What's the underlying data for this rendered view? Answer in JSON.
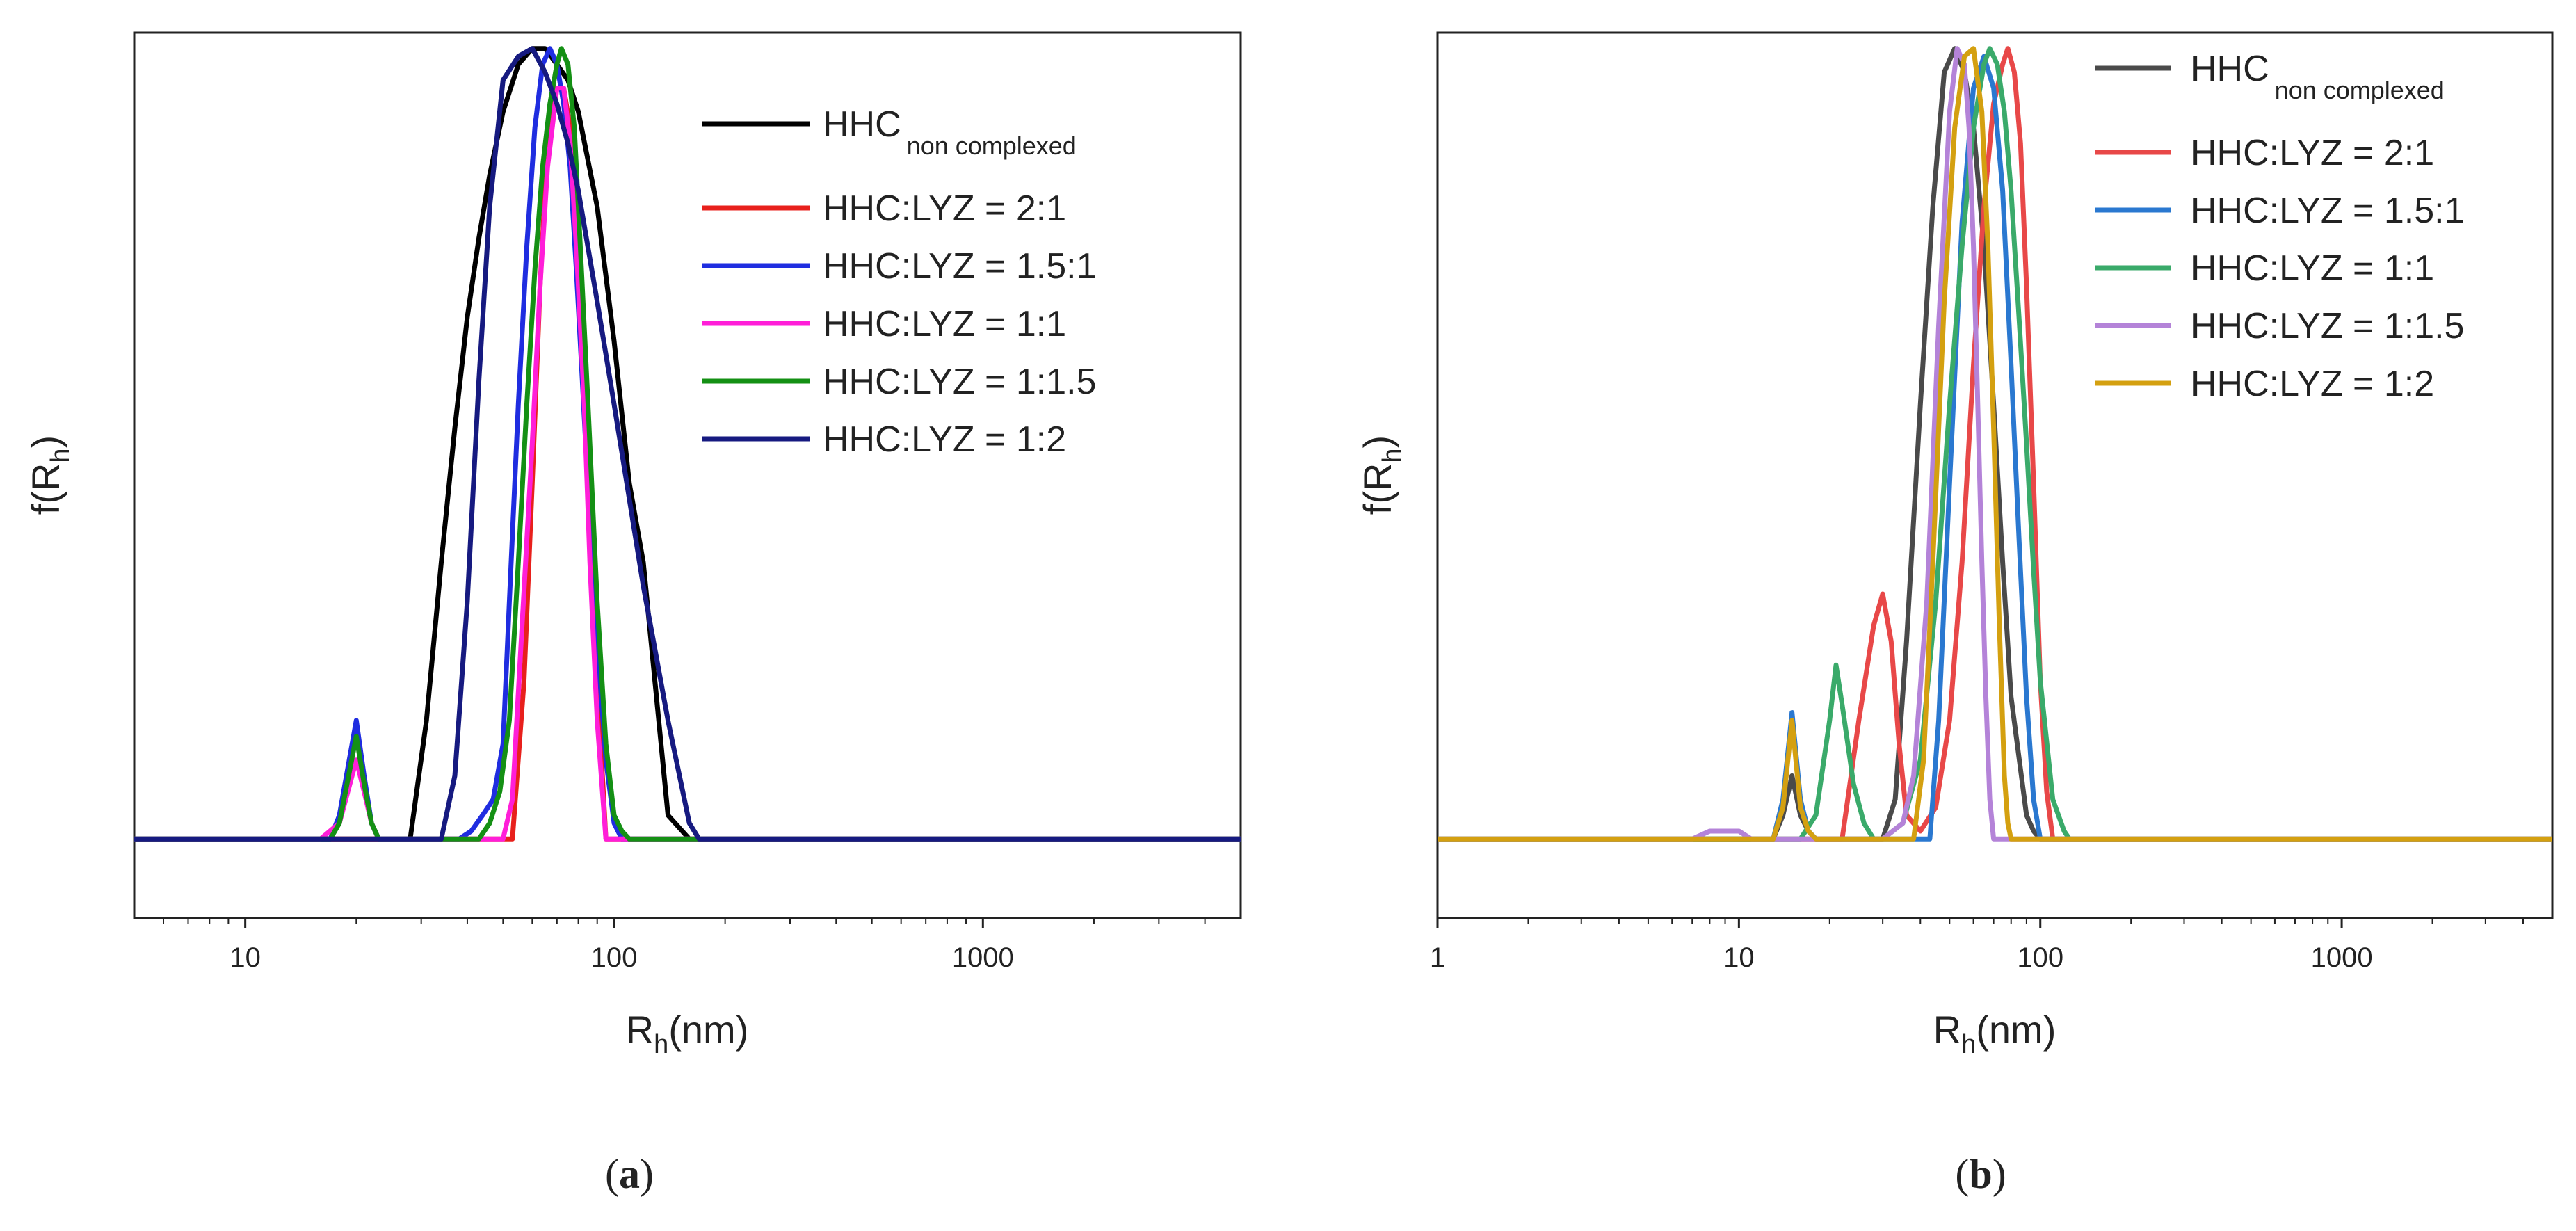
{
  "chart_data": [
    {
      "type": "line",
      "panel_label": "a",
      "xlabel": "R",
      "xlabel_sub": "h",
      "xlabel_unit": "(nm)",
      "ylabel": "f(R",
      "ylabel_sub": "h",
      "ylabel_close": ")",
      "xscale": "log",
      "xlim": [
        5,
        5000
      ],
      "ylim": [
        -0.1,
        1.02
      ],
      "xticks": [
        10,
        100,
        1000
      ],
      "xtick_labels": [
        "10",
        "100",
        "1000"
      ],
      "legend_position": "top-right",
      "series": [
        {
          "name": "HHC",
          "name_sub": "non complexed",
          "color": "#000000",
          "x": [
            5,
            28,
            31,
            34,
            37,
            40,
            43,
            46,
            50,
            55,
            60,
            65,
            70,
            75,
            80,
            90,
            100,
            110,
            120,
            140,
            160,
            5000
          ],
          "y": [
            0,
            0,
            0.15,
            0.35,
            0.52,
            0.66,
            0.76,
            0.84,
            0.92,
            0.98,
            1.0,
            1.0,
            0.98,
            0.96,
            0.92,
            0.8,
            0.63,
            0.45,
            0.35,
            0.03,
            0,
            0
          ]
        },
        {
          "name": "HHC:LYZ = 2:1",
          "name_sub": "",
          "color": "#e8201c",
          "x": [
            5,
            53,
            57,
            60,
            63,
            66,
            70,
            73,
            76,
            79,
            83,
            86,
            90,
            95,
            5000
          ],
          "y": [
            0,
            0,
            0.2,
            0.45,
            0.7,
            0.88,
            0.95,
            0.95,
            0.9,
            0.78,
            0.6,
            0.4,
            0.2,
            0,
            0
          ]
        },
        {
          "name": "HHC:LYZ = 1.5:1",
          "name_sub": "",
          "color": "#1f2de0",
          "x": [
            5,
            17,
            18,
            20,
            21,
            22,
            23,
            38,
            41,
            44,
            47,
            50,
            52,
            55,
            58,
            61,
            64,
            67,
            70,
            73,
            76,
            79,
            82,
            86,
            90,
            95,
            100,
            105,
            5000
          ],
          "y": [
            0,
            0,
            0.03,
            0.15,
            0.08,
            0.02,
            0,
            0,
            0.01,
            0.03,
            0.05,
            0.12,
            0.3,
            0.55,
            0.75,
            0.9,
            0.98,
            1.0,
            0.98,
            0.93,
            0.85,
            0.72,
            0.58,
            0.4,
            0.25,
            0.1,
            0.02,
            0,
            0
          ]
        },
        {
          "name": "HHC:LYZ = 1:1",
          "name_sub": "",
          "color": "#ff1ed8",
          "x": [
            5,
            16,
            18,
            20,
            21,
            22,
            23,
            50,
            53,
            56,
            60,
            63,
            66,
            70,
            73,
            76,
            79,
            83,
            86,
            90,
            95,
            5000
          ],
          "y": [
            0,
            0,
            0.02,
            0.1,
            0.06,
            0.02,
            0,
            0,
            0.05,
            0.25,
            0.5,
            0.7,
            0.85,
            0.95,
            0.95,
            0.88,
            0.75,
            0.55,
            0.35,
            0.15,
            0,
            0
          ]
        },
        {
          "name": "HHC:LYZ = 1:1.5",
          "name_sub": "",
          "color": "#149014",
          "x": [
            5,
            17,
            18,
            20,
            21,
            22,
            23,
            43,
            46,
            49,
            52,
            55,
            58,
            61,
            64,
            67,
            70,
            72,
            75,
            78,
            81,
            85,
            90,
            95,
            100,
            105,
            110,
            5000
          ],
          "y": [
            0,
            0,
            0.02,
            0.13,
            0.07,
            0.02,
            0,
            0,
            0.02,
            0.06,
            0.15,
            0.35,
            0.55,
            0.72,
            0.85,
            0.93,
            0.98,
            1.0,
            0.98,
            0.9,
            0.75,
            0.55,
            0.3,
            0.12,
            0.03,
            0.01,
            0,
            0
          ]
        },
        {
          "name": "HHC:LYZ = 1:2",
          "name_sub": "",
          "color": "#161a80",
          "x": [
            5,
            34,
            37,
            40,
            43,
            46,
            50,
            55,
            60,
            65,
            70,
            75,
            80,
            90,
            100,
            110,
            120,
            140,
            160,
            170,
            5000
          ],
          "y": [
            0,
            0,
            0.08,
            0.3,
            0.58,
            0.8,
            0.96,
            0.99,
            1.0,
            0.97,
            0.93,
            0.88,
            0.82,
            0.68,
            0.55,
            0.43,
            0.32,
            0.15,
            0.02,
            0,
            0
          ]
        }
      ]
    },
    {
      "type": "line",
      "panel_label": "b",
      "xlabel": "R",
      "xlabel_sub": "h",
      "xlabel_unit": "(nm)",
      "ylabel": "f(R",
      "ylabel_sub": "h",
      "ylabel_close": ")",
      "xscale": "log",
      "xlim": [
        1,
        5000
      ],
      "ylim": [
        -0.1,
        1.02
      ],
      "xticks": [
        1,
        10,
        100,
        1000
      ],
      "xtick_labels": [
        "1",
        "10",
        "100",
        "1000"
      ],
      "legend_position": "top-right",
      "series": [
        {
          "name": "HHC",
          "name_sub": "non complexed",
          "color": "#4a4a4a",
          "x": [
            1,
            13,
            14,
            15,
            16,
            17,
            18,
            30,
            33,
            36,
            40,
            44,
            48,
            52,
            56,
            60,
            65,
            70,
            75,
            80,
            90,
            95,
            100,
            5000
          ],
          "y": [
            0,
            0,
            0.03,
            0.08,
            0.03,
            0.01,
            0,
            0,
            0.05,
            0.25,
            0.55,
            0.8,
            0.97,
            1.0,
            0.97,
            0.9,
            0.75,
            0.55,
            0.35,
            0.18,
            0.03,
            0.01,
            0,
            0
          ]
        },
        {
          "name": "HHC:LYZ = 2:1",
          "name_sub": "",
          "color": "#e84848",
          "x": [
            1,
            22,
            25,
            28,
            30,
            32,
            34,
            36,
            40,
            45,
            50,
            55,
            60,
            65,
            70,
            75,
            78,
            82,
            86,
            90,
            95,
            100,
            105,
            110,
            5000
          ],
          "y": [
            0,
            0,
            0.15,
            0.27,
            0.31,
            0.25,
            0.12,
            0.03,
            0.01,
            0.04,
            0.15,
            0.35,
            0.6,
            0.8,
            0.93,
            0.98,
            1.0,
            0.97,
            0.88,
            0.7,
            0.45,
            0.2,
            0.06,
            0,
            0
          ]
        },
        {
          "name": "HHC:LYZ = 1.5:1",
          "name_sub": "",
          "color": "#2a78d0",
          "x": [
            1,
            13,
            14,
            15,
            16,
            17,
            18,
            43,
            46,
            50,
            55,
            60,
            65,
            70,
            75,
            80,
            85,
            90,
            95,
            100,
            5000
          ],
          "y": [
            0,
            0,
            0.05,
            0.16,
            0.05,
            0.01,
            0,
            0,
            0.15,
            0.45,
            0.78,
            0.95,
            0.99,
            0.95,
            0.82,
            0.6,
            0.38,
            0.18,
            0.05,
            0,
            0
          ]
        },
        {
          "name": "HHC:LYZ = 1:1",
          "name_sub": "",
          "color": "#3aaa6a",
          "x": [
            1,
            16,
            18,
            20,
            21,
            22,
            24,
            26,
            28,
            30,
            35,
            40,
            45,
            50,
            55,
            60,
            65,
            68,
            72,
            76,
            80,
            85,
            90,
            95,
            100,
            110,
            120,
            125,
            5000
          ],
          "y": [
            0,
            0,
            0.03,
            0.15,
            0.22,
            0.17,
            0.07,
            0.02,
            0,
            0,
            0.02,
            0.1,
            0.3,
            0.55,
            0.75,
            0.9,
            0.98,
            1.0,
            0.98,
            0.92,
            0.82,
            0.66,
            0.5,
            0.34,
            0.2,
            0.05,
            0.01,
            0,
            0
          ]
        },
        {
          "name": "HHC:LYZ = 1:1.5",
          "name_sub": "",
          "color": "#b483d8",
          "x": [
            1,
            7,
            8,
            9,
            10,
            11,
            30,
            35,
            38,
            42,
            46,
            50,
            53,
            56,
            58,
            60,
            62,
            64,
            66,
            68,
            70,
            5000
          ],
          "y": [
            0,
            0,
            0.01,
            0.01,
            0.01,
            0,
            0,
            0.02,
            0.08,
            0.3,
            0.65,
            0.92,
            1.0,
            0.98,
            0.9,
            0.75,
            0.55,
            0.35,
            0.18,
            0.05,
            0,
            0
          ]
        },
        {
          "name": "HHC:LYZ = 1:2",
          "name_sub": "",
          "color": "#d4a010",
          "x": [
            1,
            13,
            14,
            15,
            16,
            17,
            18,
            38,
            41,
            44,
            48,
            52,
            56,
            60,
            64,
            67,
            70,
            73,
            76,
            78,
            80,
            5000
          ],
          "y": [
            0,
            0,
            0.04,
            0.15,
            0.04,
            0.01,
            0,
            0,
            0.1,
            0.35,
            0.68,
            0.9,
            0.99,
            1.0,
            0.92,
            0.75,
            0.52,
            0.28,
            0.08,
            0.02,
            0,
            0
          ]
        }
      ]
    }
  ]
}
